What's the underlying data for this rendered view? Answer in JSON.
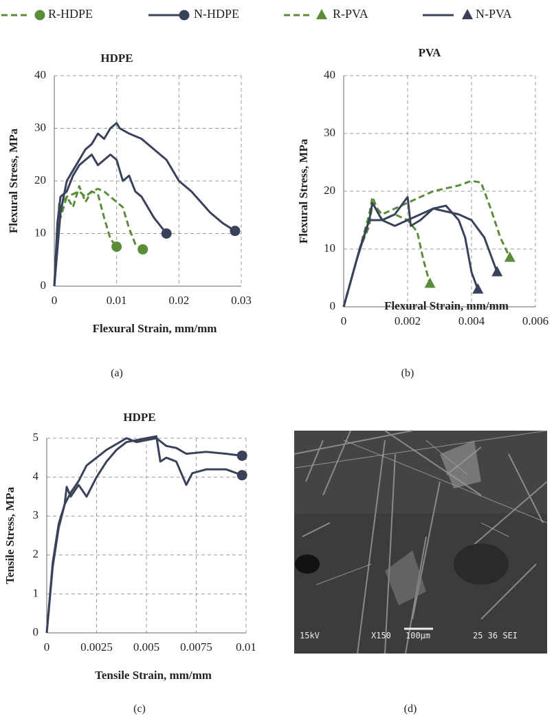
{
  "legend": [
    {
      "name": "R-HDPE",
      "color": "#5b8c3a",
      "dash": true,
      "marker": "circle"
    },
    {
      "name": "N-HDPE",
      "color": "#39425a",
      "dash": false,
      "marker": "circle"
    },
    {
      "name": "R-PVA",
      "color": "#5b8c3a",
      "dash": true,
      "marker": "triangle"
    },
    {
      "name": "N-PVA",
      "color": "#39425a",
      "dash": false,
      "marker": "triangle"
    }
  ],
  "chart_data": [
    {
      "type": "line",
      "title": "HDPE",
      "x_label": "Flexural Strain, mm/mm",
      "y_label": "Flexural Stress, MPa",
      "panel": "(a)",
      "xlim": [
        0,
        0.03
      ],
      "xticks": [
        0,
        0.01,
        0.02,
        0.03
      ],
      "ylim": [
        0,
        40
      ],
      "yticks": [
        0,
        10,
        20,
        30,
        40
      ],
      "grid": true,
      "series": [
        {
          "name": "R-HDPE",
          "x": [
            0,
            0.0008,
            0.001,
            0.002,
            0.003,
            0.004,
            0.005,
            0.006,
            0.007,
            0.008,
            0.009,
            0.01
          ],
          "values": [
            0,
            16,
            13,
            17,
            15,
            19,
            16,
            18,
            17.5,
            13,
            9,
            7.5
          ]
        },
        {
          "name": "R-HDPE",
          "x": [
            0,
            0.001,
            0.002,
            0.004,
            0.005,
            0.006,
            0.007,
            0.008,
            0.009,
            0.011,
            0.012,
            0.013,
            0.0142
          ],
          "values": [
            0,
            15,
            17,
            18,
            17,
            18,
            18.5,
            18,
            17,
            15,
            11,
            8,
            7
          ]
        },
        {
          "name": "N-HDPE",
          "x": [
            0,
            0.0005,
            0.001,
            0.002,
            0.003,
            0.004,
            0.005,
            0.006,
            0.007,
            0.008,
            0.009,
            0.01,
            0.011,
            0.012,
            0.013,
            0.014,
            0.016,
            0.018
          ],
          "values": [
            0,
            12,
            17,
            18,
            21,
            23,
            24,
            25,
            23,
            24,
            25,
            24,
            20,
            21,
            18,
            17,
            13,
            10
          ]
        },
        {
          "name": "N-HDPE",
          "x": [
            0,
            0.001,
            0.002,
            0.003,
            0.004,
            0.005,
            0.006,
            0.007,
            0.008,
            0.009,
            0.01,
            0.0105,
            0.012,
            0.014,
            0.016,
            0.018,
            0.02,
            0.022,
            0.025,
            0.027,
            0.029
          ],
          "values": [
            0,
            14,
            20,
            22,
            24,
            26,
            27,
            29,
            28,
            30,
            31,
            30,
            29,
            28,
            26,
            24,
            20,
            18,
            14,
            12,
            10.5
          ]
        }
      ]
    },
    {
      "type": "line",
      "title": "PVA",
      "x_label": "Flexural Strain, mm/mm",
      "y_label": "Flexural Stress, MPa",
      "panel": "(b)",
      "xlim": [
        0,
        0.006
      ],
      "xticks": [
        0,
        0.002,
        0.004,
        0.006
      ],
      "ylim": [
        0,
        40
      ],
      "yticks": [
        0,
        10,
        20,
        30,
        40
      ],
      "grid": true,
      "series": [
        {
          "name": "R-PVA",
          "x": [
            0,
            0.0004,
            0.0008,
            0.0009,
            0.0012,
            0.0016,
            0.002,
            0.0023,
            0.0025,
            0.0027
          ],
          "values": [
            0,
            8,
            16,
            19,
            15,
            16,
            15,
            13,
            8,
            4
          ]
        },
        {
          "name": "R-PVA",
          "x": [
            0,
            0.0005,
            0.0008,
            0.0009,
            0.0012,
            0.0016,
            0.002,
            0.0024,
            0.0028,
            0.0032,
            0.0036,
            0.004,
            0.0043,
            0.0046,
            0.0049,
            0.0052
          ],
          "values": [
            0,
            10,
            14,
            18,
            16,
            17,
            18,
            19,
            20,
            20.5,
            21,
            21.8,
            21.5,
            17,
            12,
            8.5
          ]
        },
        {
          "name": "N-PVA",
          "x": [
            0,
            0.0004,
            0.0008,
            0.0009,
            0.0012,
            0.0016,
            0.002,
            0.0024,
            0.0028,
            0.0032,
            0.0036,
            0.0038,
            0.004,
            0.0042
          ],
          "values": [
            0,
            8,
            15,
            18,
            15,
            14,
            15,
            16,
            17,
            17.5,
            15,
            12,
            6,
            3
          ]
        },
        {
          "name": "N-PVA",
          "x": [
            0,
            0.0005,
            0.0008,
            0.0012,
            0.0016,
            0.002,
            0.0021,
            0.0024,
            0.0028,
            0.0032,
            0.0036,
            0.004,
            0.0044,
            0.0046,
            0.0048
          ],
          "values": [
            0,
            10,
            15,
            15,
            16,
            19,
            14,
            15,
            17,
            16.5,
            16,
            15,
            12,
            9,
            6
          ]
        }
      ]
    },
    {
      "type": "line",
      "title": "HDPE",
      "x_label": "Tensile Strain, mm/mm",
      "y_label": "Tensile Stress, MPa",
      "panel": "(c)",
      "xlim": [
        0,
        0.01
      ],
      "xticks": [
        0,
        0.0025,
        0.005,
        0.0075,
        0.01
      ],
      "ylim": [
        0,
        5
      ],
      "yticks": [
        0,
        1,
        2,
        3,
        4,
        5
      ],
      "grid": true,
      "series": [
        {
          "name": "N-HDPE",
          "x": [
            0,
            0.0003,
            0.0006,
            0.0009,
            0.0012,
            0.0016,
            0.002,
            0.0025,
            0.003,
            0.0035,
            0.004,
            0.0045,
            0.005,
            0.0055,
            0.006,
            0.0065,
            0.007,
            0.008,
            0.009,
            0.0098
          ],
          "values": [
            0,
            1.8,
            2.8,
            3.3,
            3.6,
            3.9,
            4.3,
            4.5,
            4.7,
            4.85,
            5,
            4.9,
            4.95,
            5,
            4.8,
            4.75,
            4.6,
            4.65,
            4.6,
            4.55
          ]
        },
        {
          "name": "N-HDPE",
          "x": [
            0,
            0.0003,
            0.0006,
            0.0009,
            0.001,
            0.0012,
            0.0016,
            0.002,
            0.0025,
            0.003,
            0.0035,
            0.004,
            0.0045,
            0.005,
            0.0055,
            0.0057,
            0.006,
            0.0065,
            0.007,
            0.0073,
            0.008,
            0.009,
            0.0098
          ],
          "values": [
            0,
            1.7,
            2.7,
            3.3,
            3.75,
            3.5,
            3.8,
            3.5,
            4,
            4.4,
            4.7,
            4.9,
            4.95,
            5,
            5.05,
            4.4,
            4.5,
            4.4,
            3.8,
            4.1,
            4.2,
            4.2,
            4.05
          ]
        }
      ]
    }
  ],
  "image": {
    "panel": "(d)",
    "labels": [
      "15kV",
      "X150",
      "100µm",
      "25 36 SEI"
    ]
  }
}
